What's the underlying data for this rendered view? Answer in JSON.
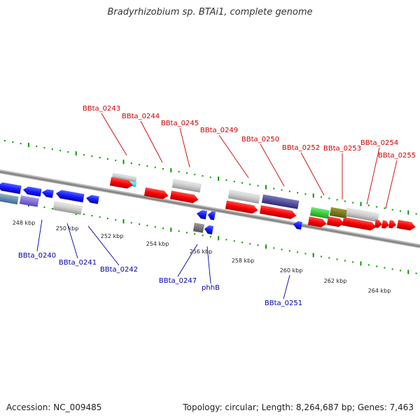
{
  "header": {
    "title": "Bradyrhizobium sp. BTAi1, complete genome"
  },
  "footer": {
    "accession": "Accession: NC_009485",
    "summary": "Topology: circular; Length: 8,264,687 bp; Genes: 7,463"
  },
  "colors": {
    "forward_label": "#cc0000",
    "reverse_label": "#0000aa",
    "tick_green": "#009900",
    "backbone": "#888888"
  },
  "scale_labels": [
    "248 kbp",
    "250 kbp",
    "252 kbp",
    "254 kbp",
    "256 kbp",
    "258 kbp",
    "260 kbp",
    "262 kbp",
    "264 kbp"
  ],
  "forward_gene_labels": [
    "BBta_0243",
    "BBta_0244",
    "BBta_0245",
    "BBta_0249",
    "BBta_0250",
    "BBta_0252",
    "BBta_0253",
    "BBta_0254",
    "BBta_0255"
  ],
  "reverse_gene_labels": [
    "BBta_0240",
    "BBta_0241",
    "BBta_0242",
    "BBta_0247",
    "phhB",
    "BBta_0251"
  ]
}
